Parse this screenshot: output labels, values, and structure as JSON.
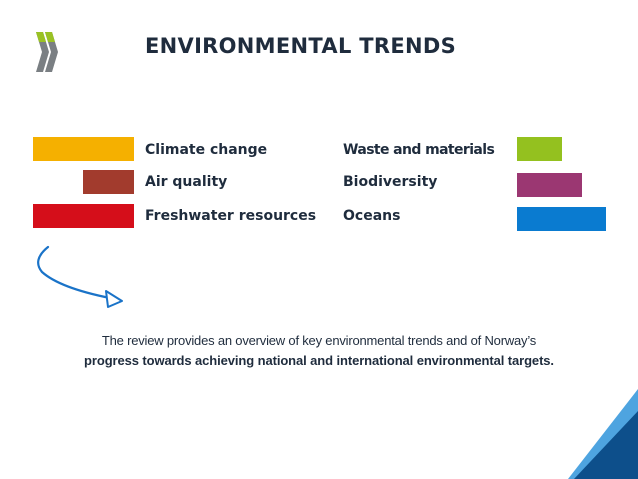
{
  "slide": {
    "title": "ENVIRONMENTAL TRENDS",
    "logo_icon": "oecd-chevrons-logo",
    "arrow_icon": "curved-arrow-icon",
    "corner_icon": "blue-corner-decoration"
  },
  "categories": [
    {
      "label": "Climate change",
      "color": "#f5b000"
    },
    {
      "label": "Air quality",
      "color": "#a23b2d"
    },
    {
      "label": "Freshwater resources",
      "color": "#d50e1a"
    },
    {
      "label": "Waste and materials",
      "color": "#94c11f"
    },
    {
      "label": "Biodiversity",
      "color": "#9b3772"
    },
    {
      "label": "Oceans",
      "color": "#0a7bd0"
    }
  ],
  "caption": {
    "line1": "The review provides an overview of key environmental trends and of Norway’s",
    "line2": "progress towards achieving national and international environmental targets."
  },
  "colors": {
    "title_text": "#1f2c3d",
    "arrow": "#1a73c8",
    "corner_dark": "#0d4f8b",
    "corner_light": "#4ea4e0"
  }
}
